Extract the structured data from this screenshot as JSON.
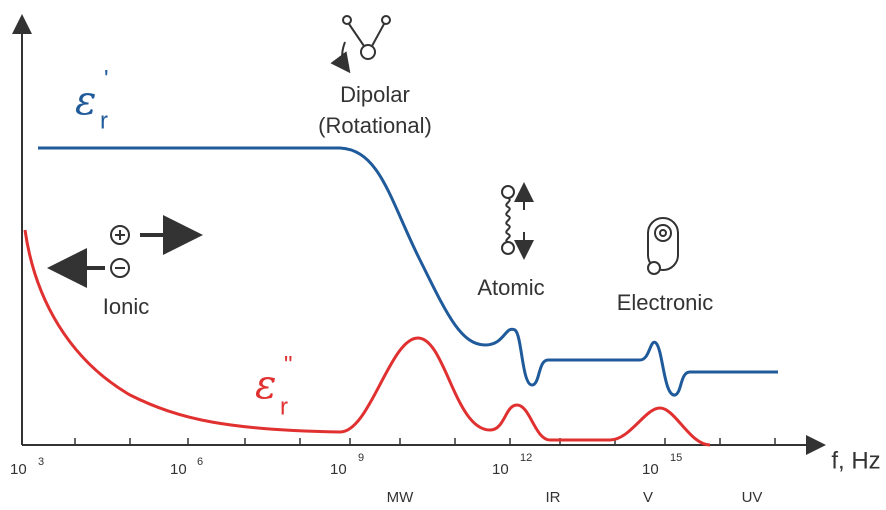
{
  "curves": {
    "real": {
      "symbol": "ε",
      "subscript": "r",
      "superscript": "'"
    },
    "imaginary": {
      "symbol": "ε",
      "subscript": "r",
      "superscript": "\""
    }
  },
  "mechanisms": {
    "dipolar": [
      "Dipolar",
      "(Rotational)"
    ],
    "atomic": "Atomic",
    "electronic": "Electronic",
    "ionic": "Ionic"
  },
  "axis": {
    "label": "f, Hz",
    "ticks": [
      {
        "base": "10",
        "exponent": "3"
      },
      {
        "base": "10",
        "exponent": "6"
      },
      {
        "base": "10",
        "exponent": "9"
      },
      {
        "base": "10",
        "exponent": "12"
      },
      {
        "base": "10",
        "exponent": "15"
      }
    ]
  },
  "bands": [
    "MW",
    "IR",
    "V",
    "UV"
  ]
}
